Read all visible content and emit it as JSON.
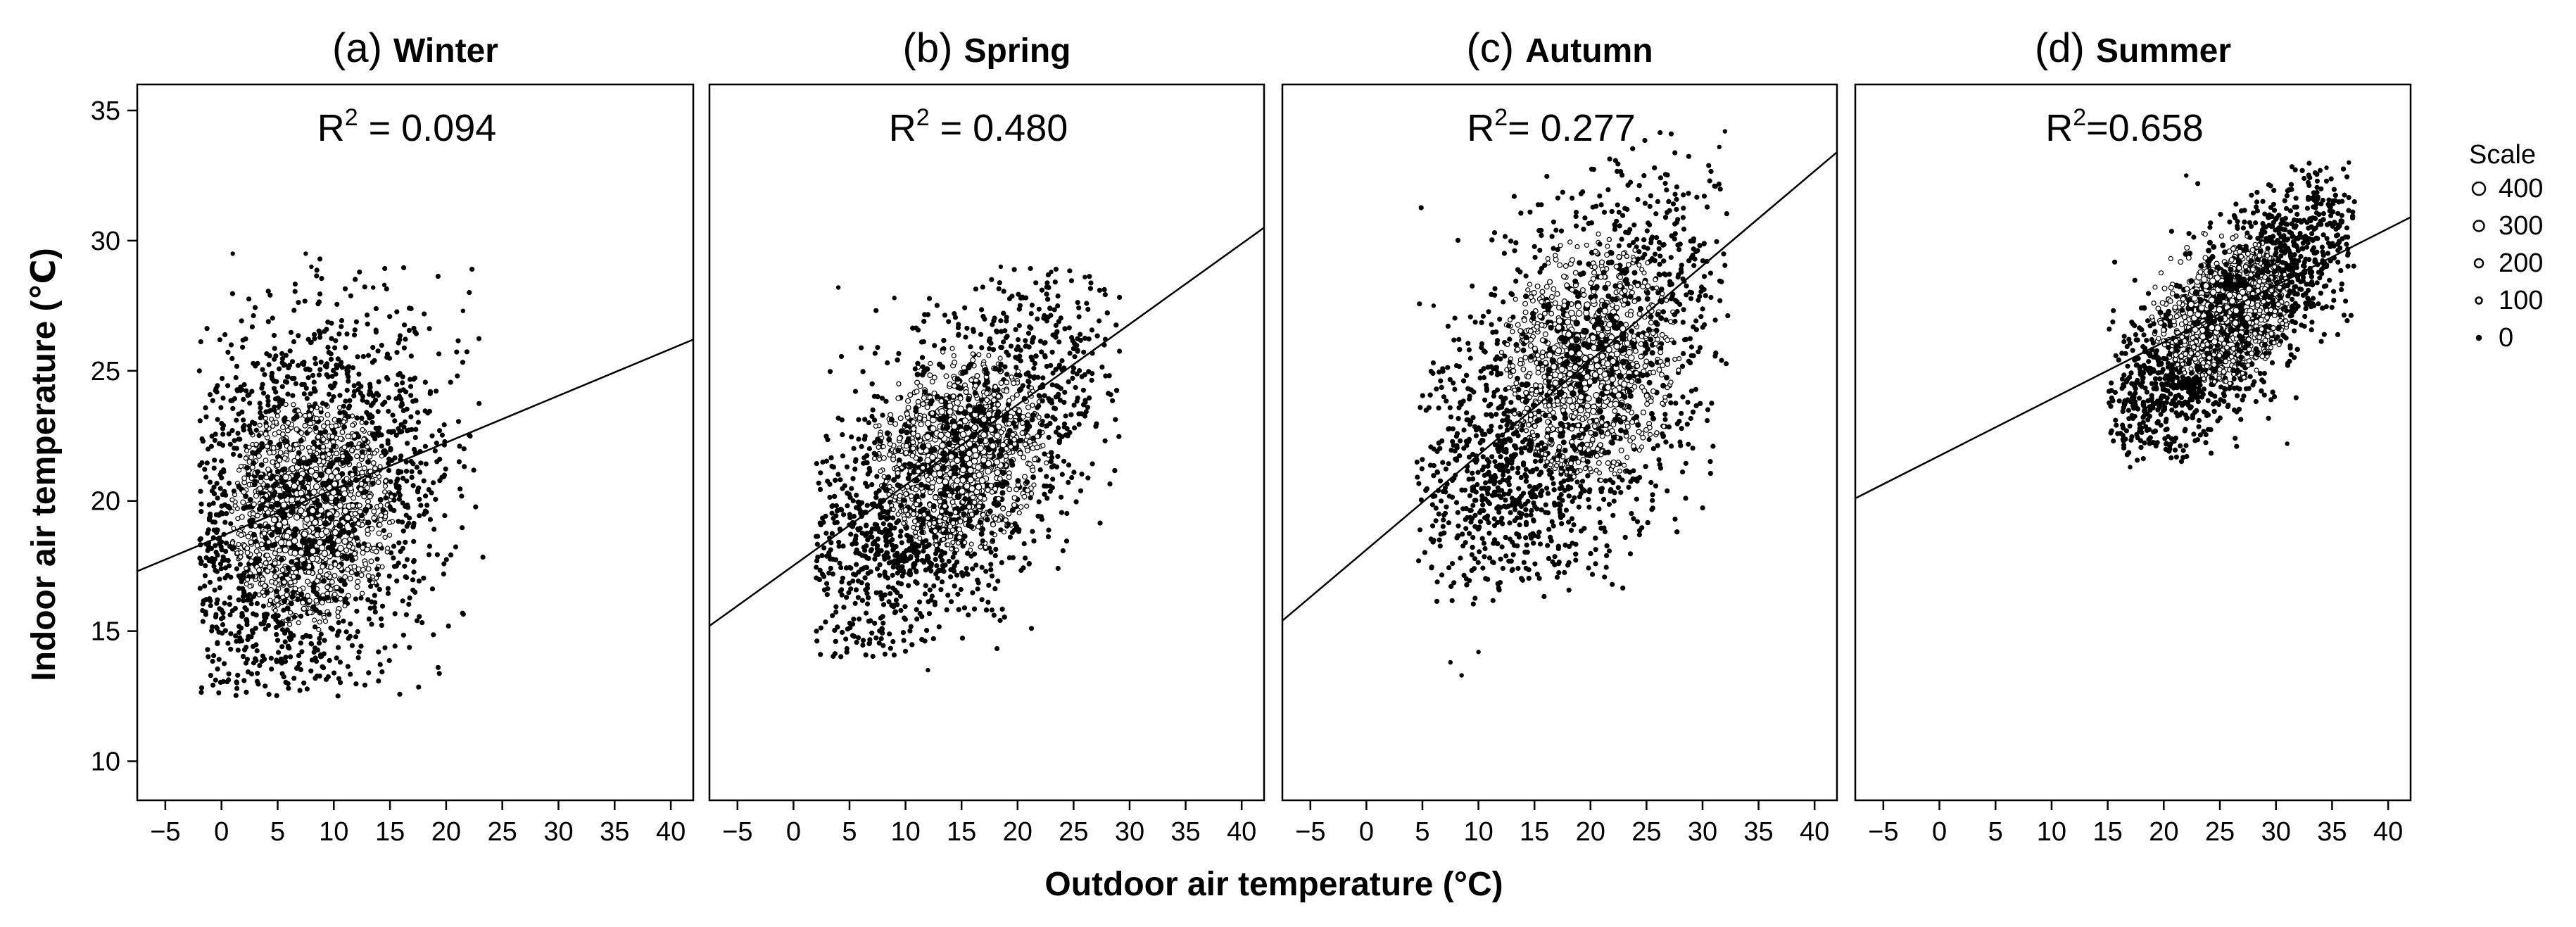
{
  "figure": {
    "ylabel": "Indoor air temperature (℃)",
    "xlabel": "Outdoor air temperature (°C)"
  },
  "legend": {
    "title": "Scale",
    "placement": "right",
    "items": [
      {
        "label": "400",
        "value": 400
      },
      {
        "label": "300",
        "value": 300
      },
      {
        "label": "200",
        "value": 200
      },
      {
        "label": "100",
        "value": 100
      },
      {
        "label": "0",
        "value": 0
      }
    ]
  },
  "chart_data": [
    {
      "type": "scatter",
      "panel_letter": "(a)",
      "title": "Winter",
      "annotation": {
        "base": "R",
        "sup": "2",
        "rest": " = 0.094"
      },
      "xlim": [
        -7.5,
        42
      ],
      "ylim": [
        8.5,
        36
      ],
      "xticks": [
        -5,
        0,
        5,
        10,
        15,
        20,
        25,
        30,
        35,
        40
      ],
      "yticks": [
        10,
        15,
        20,
        25,
        30,
        35
      ],
      "regression_line": {
        "x": [
          -7.5,
          42
        ],
        "y": [
          17.3,
          26.2
        ]
      },
      "cluster": {
        "center": [
          7,
          19.5
        ],
        "x_extent": [
          -2,
          23.5
        ],
        "y_extent": [
          12.5,
          29.5
        ],
        "dense_center": [
          8,
          19.5
        ]
      },
      "outliers": [
        [
          1,
          29.5
        ],
        [
          7.5,
          29.5
        ],
        [
          8,
          29
        ],
        [
          13.5,
          28.2
        ],
        [
          14.5,
          28.3
        ],
        [
          21.5,
          27.3
        ]
      ]
    },
    {
      "type": "scatter",
      "panel_letter": "(b)",
      "title": "Spring",
      "annotation": {
        "base": "R",
        "sup": "2",
        "rest": " = 0.480"
      },
      "xlim": [
        -7.5,
        42
      ],
      "ylim": [
        8.5,
        36
      ],
      "xticks": [
        -5,
        0,
        5,
        10,
        15,
        20,
        25,
        30,
        35,
        40
      ],
      "yticks": [
        10,
        15,
        20,
        25,
        30,
        35
      ],
      "regression_line": {
        "x": [
          -7.5,
          42
        ],
        "y": [
          15.2,
          30.5
        ]
      },
      "cluster": {
        "center": [
          14,
          21
        ],
        "x_extent": [
          2,
          29.5
        ],
        "y_extent": [
          14,
          29
        ],
        "dense_center": [
          15,
          22
        ]
      },
      "outliers": [
        [
          4,
          28.2
        ],
        [
          9,
          27.8
        ],
        [
          12,
          13.5
        ],
        [
          18.5,
          29
        ],
        [
          23,
          28.8
        ],
        [
          26,
          28.6
        ]
      ]
    },
    {
      "type": "scatter",
      "panel_letter": "(c)",
      "title": "Autumn",
      "annotation": {
        "base": "R",
        "sup": "2",
        "rest": "= 0.277"
      },
      "xlim": [
        -7.5,
        42
      ],
      "ylim": [
        8.5,
        36
      ],
      "xticks": [
        -5,
        0,
        5,
        10,
        15,
        20,
        25,
        30,
        35,
        40
      ],
      "yticks": [
        10,
        15,
        20,
        25,
        30,
        35
      ],
      "regression_line": {
        "x": [
          -7.5,
          42
        ],
        "y": [
          15.4,
          33.4
        ]
      },
      "cluster": {
        "center": [
          18,
          23.8
        ],
        "x_extent": [
          4.5,
          32.3
        ],
        "y_extent": [
          16,
          34.2
        ],
        "dense_center": [
          20,
          25.5
        ]
      },
      "outliers": [
        [
          7.5,
          13.8
        ],
        [
          8.5,
          13.3
        ],
        [
          10,
          14.2
        ],
        [
          32,
          34.2
        ],
        [
          31.5,
          33.6
        ],
        [
          6,
          27.5
        ]
      ]
    },
    {
      "type": "scatter",
      "panel_letter": "(d)",
      "title": "Summer",
      "annotation": {
        "base": "R",
        "sup": "2",
        "rest": "=0.658"
      },
      "xlim": [
        -7.5,
        42
      ],
      "ylim": [
        8.5,
        36
      ],
      "xticks": [
        -5,
        0,
        5,
        10,
        15,
        20,
        25,
        30,
        35,
        40
      ],
      "yticks": [
        10,
        15,
        20,
        25,
        30,
        35
      ],
      "regression_line": {
        "x": [
          -7.5,
          42
        ],
        "y": [
          20.1,
          30.9
        ]
      },
      "cluster": {
        "center": [
          26,
          27
        ],
        "x_extent": [
          15,
          37
        ],
        "y_extent": [
          21.5,
          33
        ],
        "dense_center": [
          25,
          27.5
        ]
      },
      "outliers": [
        [
          36.5,
          33
        ],
        [
          34.5,
          32.8
        ],
        [
          31,
          22.2
        ],
        [
          17,
          21.3
        ],
        [
          22,
          32.5
        ]
      ]
    }
  ]
}
